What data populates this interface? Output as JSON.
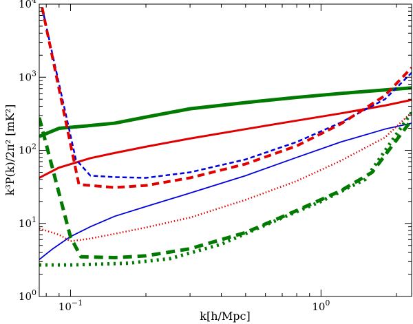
{
  "chart_data": {
    "type": "line",
    "title": "",
    "xlabel": "k[h/Mpc]",
    "ylabel": "k³P(k)/2π² [mK²]",
    "xscale": "log",
    "yscale": "log",
    "xlim": [
      0.075,
      2.3
    ],
    "ylim": [
      1,
      10000
    ],
    "x_tick_labels": [
      {
        "value": 0.1,
        "base": "10",
        "exp": "−1"
      },
      {
        "value": 1,
        "base": "10",
        "exp": "0"
      }
    ],
    "y_tick_labels": [
      {
        "value": 1,
        "base": "10",
        "exp": "0"
      },
      {
        "value": 10,
        "base": "10",
        "exp": "1"
      },
      {
        "value": 100,
        "base": "10",
        "exp": "2"
      },
      {
        "value": 1000,
        "base": "10",
        "exp": "3"
      },
      {
        "value": 10000,
        "base": "10",
        "exp": "4"
      }
    ],
    "series": [
      {
        "name": "green-solid",
        "color": "#007a00",
        "style": "solid",
        "width": 5,
        "x": [
          0.075,
          0.09,
          0.12,
          0.15,
          0.2,
          0.3,
          0.5,
          0.8,
          1.2,
          1.8,
          2.3
        ],
        "y": [
          155,
          200,
          218,
          235,
          285,
          370,
          450,
          530,
          600,
          670,
          715
        ]
      },
      {
        "name": "red-solid",
        "color": "#e00000",
        "style": "solid",
        "width": 3,
        "x": [
          0.075,
          0.09,
          0.12,
          0.15,
          0.2,
          0.3,
          0.5,
          0.8,
          1.2,
          1.8,
          2.3
        ],
        "y": [
          42,
          58,
          78,
          92,
          112,
          145,
          195,
          255,
          320,
          410,
          490
        ]
      },
      {
        "name": "blue-solid",
        "color": "#0000dd",
        "style": "solid",
        "width": 1.8,
        "x": [
          0.075,
          0.085,
          0.1,
          0.12,
          0.15,
          0.2,
          0.3,
          0.5,
          0.8,
          1.2,
          1.8,
          2.3
        ],
        "y": [
          3.2,
          4.5,
          6.6,
          9,
          12.5,
          17,
          26,
          45,
          80,
          130,
          195,
          235
        ]
      },
      {
        "name": "blue-dashed",
        "color": "#0000dd",
        "style": "dashed",
        "width": 2.5,
        "x": [
          0.077,
          0.105,
          0.12,
          0.15,
          0.2,
          0.3,
          0.5,
          0.8,
          1.2,
          1.8,
          2.3
        ],
        "y": [
          9000,
          75,
          45,
          43,
          42,
          50,
          75,
          130,
          240,
          500,
          1150
        ]
      },
      {
        "name": "red-dashed",
        "color": "#e00000",
        "style": "dashed",
        "width": 4,
        "x": [
          0.077,
          0.108,
          0.12,
          0.15,
          0.2,
          0.3,
          0.5,
          0.8,
          1.2,
          1.8,
          2.3
        ],
        "y": [
          9000,
          34,
          33,
          31,
          33,
          42,
          65,
          115,
          230,
          560,
          1350
        ]
      },
      {
        "name": "green-dashed",
        "color": "#007a00",
        "style": "dashed",
        "width": 5,
        "x": [
          0.075,
          0.1,
          0.11,
          0.15,
          0.2,
          0.3,
          0.5,
          0.8,
          1.2,
          1.6,
          2.3
        ],
        "y": [
          280,
          6.5,
          3.5,
          3.4,
          3.6,
          4.5,
          7.5,
          15,
          28,
          50,
          260
        ]
      },
      {
        "name": "red-dotted",
        "color": "#e00000",
        "style": "dotted",
        "width": 2.5,
        "x": [
          0.075,
          0.09,
          0.1,
          0.12,
          0.15,
          0.2,
          0.3,
          0.5,
          0.8,
          1.2,
          1.8,
          2.3
        ],
        "y": [
          8.5,
          7,
          5.7,
          6.2,
          7.2,
          8.8,
          12,
          21,
          38,
          72,
          150,
          330
        ]
      },
      {
        "name": "green-dotted",
        "color": "#007a00",
        "style": "dotted",
        "width": 5,
        "x": [
          0.075,
          0.1,
          0.12,
          0.17,
          0.25,
          0.4,
          0.6,
          1.0,
          1.5,
          2.3
        ],
        "y": [
          2.7,
          2.7,
          2.75,
          2.85,
          3.3,
          5.2,
          9.5,
          20,
          40,
          330
        ]
      }
    ]
  }
}
